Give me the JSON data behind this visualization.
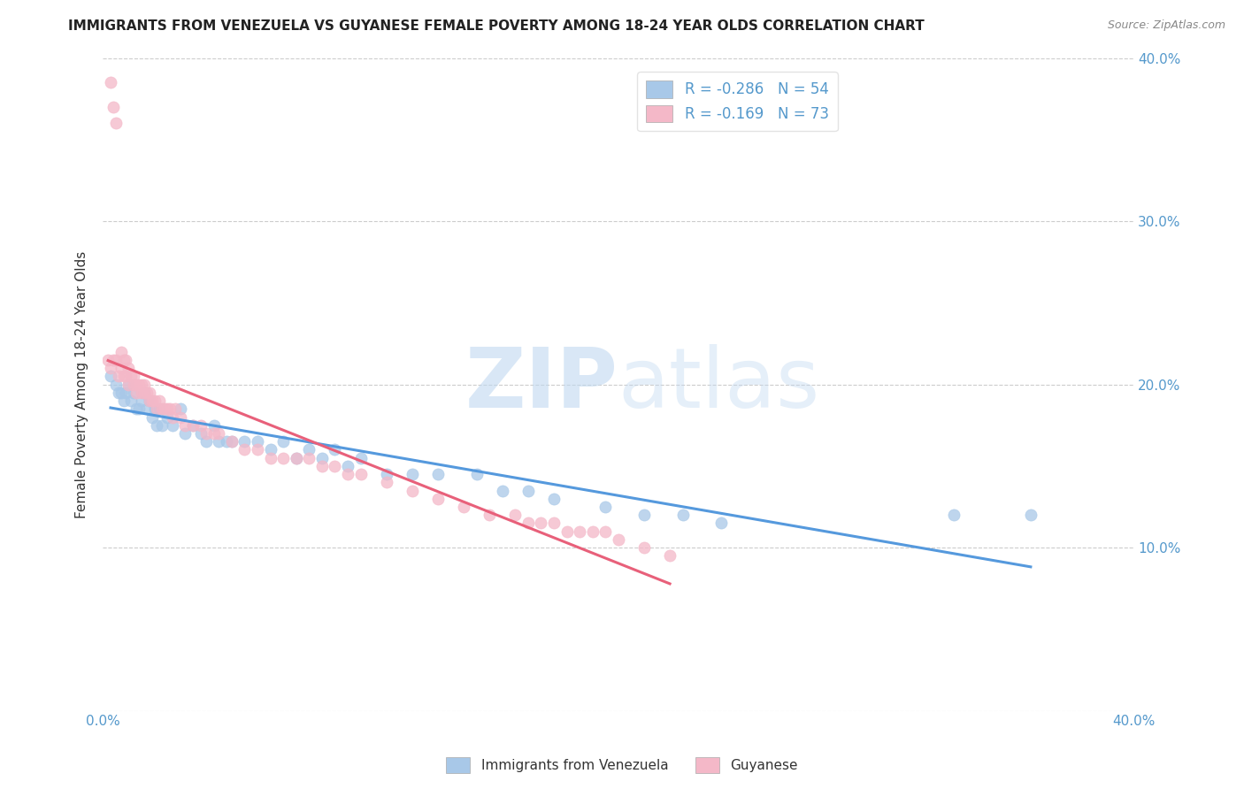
{
  "title": "IMMIGRANTS FROM VENEZUELA VS GUYANESE FEMALE POVERTY AMONG 18-24 YEAR OLDS CORRELATION CHART",
  "source": "Source: ZipAtlas.com",
  "ylabel": "Female Poverty Among 18-24 Year Olds",
  "xlim": [
    0.0,
    0.4
  ],
  "ylim": [
    0.0,
    0.4
  ],
  "xtick_vals": [
    0.0,
    0.4
  ],
  "xtick_labels": [
    "0.0%",
    "40.0%"
  ],
  "ytick_vals": [
    0.0,
    0.1,
    0.2,
    0.3,
    0.4
  ],
  "ytick_labels_right": [
    "",
    "10.0%",
    "20.0%",
    "30.0%",
    "40.0%"
  ],
  "legend1_label": "Immigrants from Venezuela",
  "legend2_label": "Guyanese",
  "R1": -0.286,
  "N1": 54,
  "R2": -0.169,
  "N2": 73,
  "color1": "#a8c8e8",
  "color2": "#f4b8c8",
  "line1_color": "#5599dd",
  "line2_color": "#e8607a",
  "watermark_zip": "ZIP",
  "watermark_atlas": "atlas",
  "background_color": "#ffffff",
  "title_fontsize": 11,
  "source_fontsize": 9,
  "scatter1_x": [
    0.003,
    0.005,
    0.006,
    0.007,
    0.008,
    0.009,
    0.01,
    0.011,
    0.012,
    0.013,
    0.014,
    0.015,
    0.016,
    0.017,
    0.018,
    0.019,
    0.02,
    0.021,
    0.022,
    0.023,
    0.025,
    0.027,
    0.03,
    0.032,
    0.035,
    0.038,
    0.04,
    0.043,
    0.045,
    0.048,
    0.05,
    0.055,
    0.06,
    0.065,
    0.07,
    0.075,
    0.08,
    0.085,
    0.09,
    0.095,
    0.1,
    0.11,
    0.12,
    0.13,
    0.145,
    0.155,
    0.165,
    0.175,
    0.195,
    0.21,
    0.225,
    0.24,
    0.33,
    0.36
  ],
  "scatter1_y": [
    0.205,
    0.2,
    0.195,
    0.195,
    0.19,
    0.195,
    0.2,
    0.19,
    0.195,
    0.185,
    0.185,
    0.19,
    0.195,
    0.185,
    0.19,
    0.18,
    0.185,
    0.175,
    0.185,
    0.175,
    0.18,
    0.175,
    0.185,
    0.17,
    0.175,
    0.17,
    0.165,
    0.175,
    0.165,
    0.165,
    0.165,
    0.165,
    0.165,
    0.16,
    0.165,
    0.155,
    0.16,
    0.155,
    0.16,
    0.15,
    0.155,
    0.145,
    0.145,
    0.145,
    0.145,
    0.135,
    0.135,
    0.13,
    0.125,
    0.12,
    0.12,
    0.115,
    0.12,
    0.12
  ],
  "scatter2_x": [
    0.002,
    0.003,
    0.004,
    0.005,
    0.006,
    0.007,
    0.007,
    0.008,
    0.008,
    0.009,
    0.009,
    0.01,
    0.01,
    0.011,
    0.012,
    0.012,
    0.013,
    0.013,
    0.014,
    0.015,
    0.015,
    0.016,
    0.016,
    0.017,
    0.018,
    0.018,
    0.019,
    0.02,
    0.021,
    0.022,
    0.023,
    0.024,
    0.025,
    0.026,
    0.027,
    0.028,
    0.03,
    0.032,
    0.035,
    0.038,
    0.04,
    0.043,
    0.045,
    0.05,
    0.055,
    0.06,
    0.065,
    0.07,
    0.075,
    0.08,
    0.085,
    0.09,
    0.095,
    0.1,
    0.11,
    0.12,
    0.13,
    0.14,
    0.15,
    0.16,
    0.17,
    0.18,
    0.19,
    0.2,
    0.21,
    0.22,
    0.165,
    0.175,
    0.185,
    0.195,
    0.003,
    0.004,
    0.005
  ],
  "scatter2_y": [
    0.215,
    0.21,
    0.215,
    0.215,
    0.205,
    0.22,
    0.21,
    0.215,
    0.205,
    0.215,
    0.205,
    0.21,
    0.2,
    0.205,
    0.2,
    0.205,
    0.2,
    0.195,
    0.2,
    0.2,
    0.195,
    0.2,
    0.195,
    0.195,
    0.195,
    0.19,
    0.19,
    0.19,
    0.185,
    0.19,
    0.185,
    0.185,
    0.185,
    0.185,
    0.18,
    0.185,
    0.18,
    0.175,
    0.175,
    0.175,
    0.17,
    0.17,
    0.17,
    0.165,
    0.16,
    0.16,
    0.155,
    0.155,
    0.155,
    0.155,
    0.15,
    0.15,
    0.145,
    0.145,
    0.14,
    0.135,
    0.13,
    0.125,
    0.12,
    0.12,
    0.115,
    0.11,
    0.11,
    0.105,
    0.1,
    0.095,
    0.115,
    0.115,
    0.11,
    0.11,
    0.385,
    0.37,
    0.36
  ]
}
